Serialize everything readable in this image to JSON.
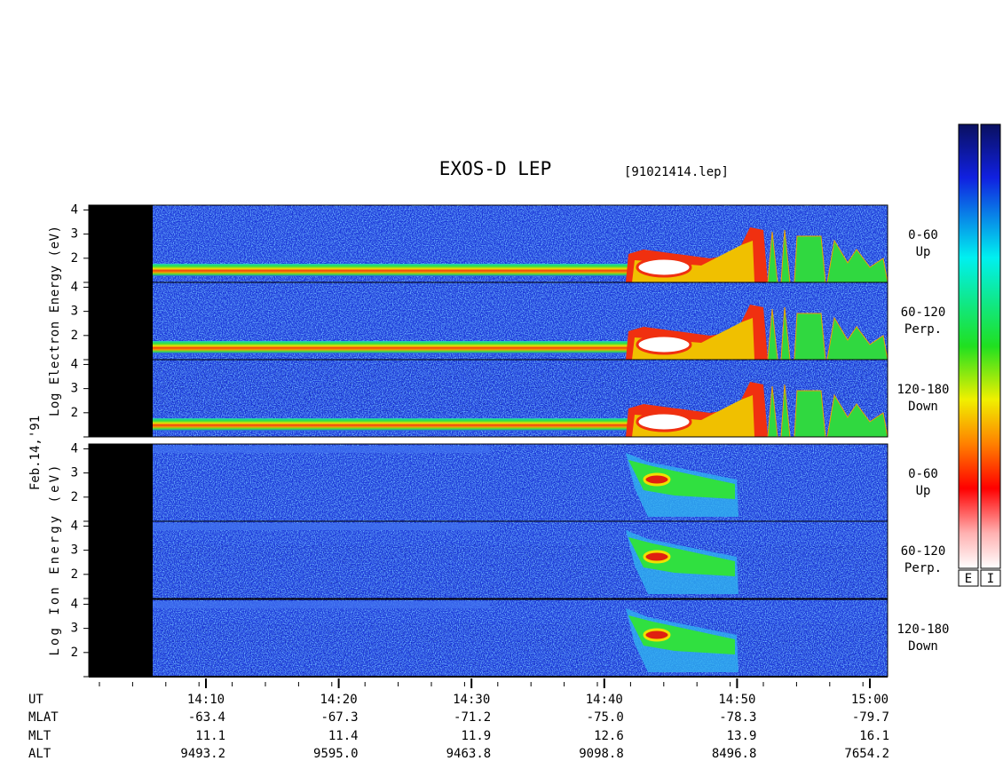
{
  "title": "EXOS-D LEP",
  "file": "[91021414.lep]",
  "date": "Feb.14,'91",
  "yticks": [
    2,
    3,
    4
  ],
  "ylim": [
    1,
    4.2
  ],
  "groups": [
    {
      "axis_label": "Log Electron Energy (eV)",
      "species": "electron",
      "panels": [
        {
          "angle": "0-60",
          "direction": "Up"
        },
        {
          "angle": "60-120",
          "direction": "Perp."
        },
        {
          "angle": "120-180",
          "direction": "Down"
        }
      ]
    },
    {
      "axis_label": "Log Ion Energy (eV)",
      "species": "ion",
      "panels": [
        {
          "angle": "0-60",
          "direction": "Up"
        },
        {
          "angle": "60-120",
          "direction": "Perp."
        },
        {
          "angle": "120-180",
          "direction": "Down"
        }
      ]
    }
  ],
  "rows": [
    {
      "label": "UT",
      "values": [
        "14:10",
        "14:20",
        "14:30",
        "14:40",
        "14:50",
        "15:00"
      ]
    },
    {
      "label": "MLAT",
      "values": [
        "-63.4",
        "-67.3",
        "-71.2",
        "-75.0",
        "-78.3",
        "-79.7"
      ]
    },
    {
      "label": "MLT",
      "values": [
        "11.1",
        "11.4",
        "11.9",
        "12.6",
        "13.9",
        "16.1"
      ]
    },
    {
      "label": "ALT",
      "values": [
        "9493.2",
        "9595.0",
        "9463.8",
        "9098.8",
        "8496.8",
        "7654.2"
      ]
    }
  ],
  "colorbars": [
    "E",
    "I"
  ]
}
